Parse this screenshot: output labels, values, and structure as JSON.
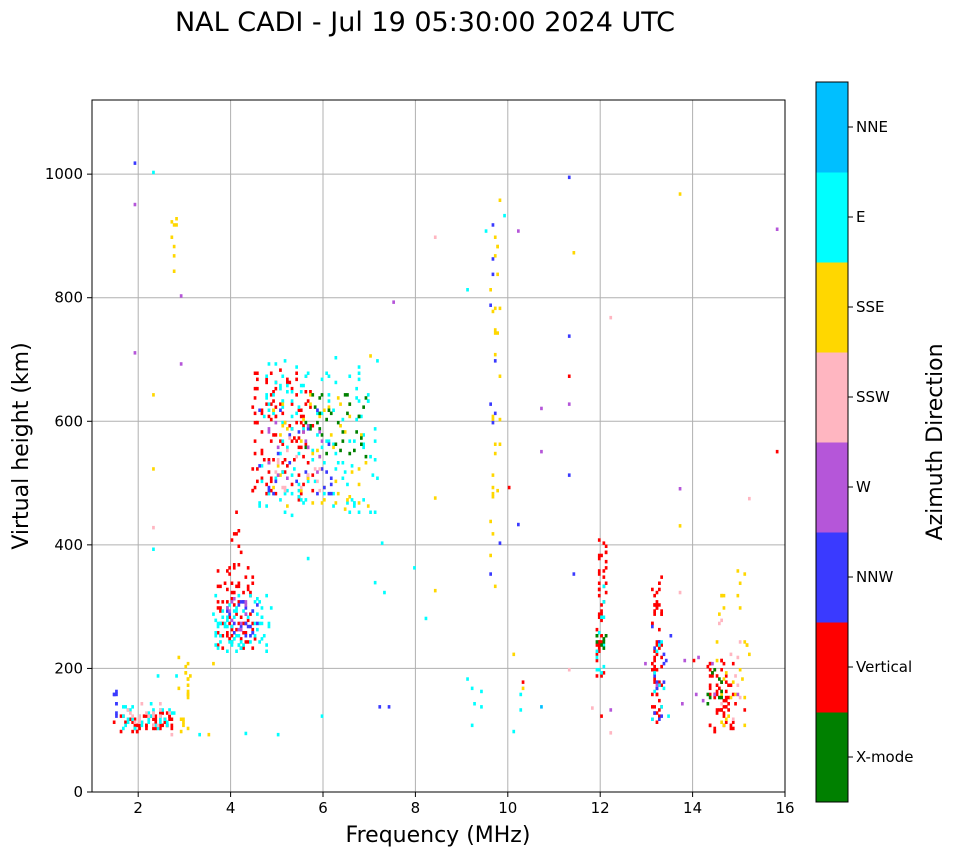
{
  "chart_data": {
    "type": "scatter",
    "title": "NAL CADI - Jul 19 05:30:00 2024 UTC",
    "xlabel": "Frequency (MHz)",
    "ylabel": "Virtual height (km)",
    "xlim": [
      1,
      16
    ],
    "ylim": [
      0,
      1120
    ],
    "xticks": [
      2,
      4,
      6,
      8,
      10,
      12,
      14,
      16
    ],
    "yticks": [
      0,
      200,
      400,
      600,
      800,
      1000
    ],
    "grid": true,
    "colorbar": {
      "label": "Azimuth Direction",
      "categories": [
        {
          "name": "X-mode",
          "color": "#008000"
        },
        {
          "name": "Vertical",
          "color": "#ff0000"
        },
        {
          "name": "NNW",
          "color": "#3a3aff"
        },
        {
          "name": "W",
          "color": "#b556d9"
        },
        {
          "name": "SSW",
          "color": "#ffb6c1"
        },
        {
          "name": "SSE",
          "color": "#ffd700"
        },
        {
          "name": "E",
          "color": "#00ffff"
        },
        {
          "name": "NNE",
          "color": "#00bfff"
        }
      ]
    },
    "clusters": [
      {
        "cat": "Vertical",
        "f": [
          1.45,
          2.7
        ],
        "h": [
          95,
          125
        ],
        "n": 50,
        "seed": 1
      },
      {
        "cat": "E",
        "f": [
          1.6,
          2.8
        ],
        "h": [
          100,
          140
        ],
        "n": 35,
        "seed": 2
      },
      {
        "cat": "NNW",
        "f": [
          1.45,
          1.55
        ],
        "h": [
          100,
          160
        ],
        "n": 8,
        "seed": 3
      },
      {
        "cat": "SSW",
        "f": [
          1.7,
          2.7
        ],
        "h": [
          105,
          140
        ],
        "n": 18,
        "seed": 4
      },
      {
        "cat": "SSE",
        "f": [
          2.8,
          3.1
        ],
        "h": [
          90,
          215
        ],
        "n": 20,
        "seed": 5
      },
      {
        "cat": "Vertical",
        "f": [
          3.7,
          4.5
        ],
        "h": [
          230,
          360
        ],
        "n": 70,
        "seed": 6
      },
      {
        "cat": "E",
        "f": [
          3.6,
          4.8
        ],
        "h": [
          225,
          320
        ],
        "n": 70,
        "seed": 7
      },
      {
        "cat": "NNW",
        "f": [
          3.9,
          4.6
        ],
        "h": [
          240,
          310
        ],
        "n": 20,
        "seed": 8
      },
      {
        "cat": "W",
        "f": [
          3.8,
          4.4
        ],
        "h": [
          250,
          310
        ],
        "n": 12,
        "seed": 9
      },
      {
        "cat": "Vertical",
        "f": [
          4.0,
          4.2
        ],
        "h": [
          360,
          450
        ],
        "n": 10,
        "seed": 10
      },
      {
        "cat": "Vertical",
        "f": [
          4.4,
          5.8
        ],
        "h": [
          470,
          680
        ],
        "n": 110,
        "seed": 11
      },
      {
        "cat": "E",
        "f": [
          4.6,
          7.2
        ],
        "h": [
          440,
          700
        ],
        "n": 130,
        "seed": 12
      },
      {
        "cat": "SSE",
        "f": [
          4.9,
          7.0
        ],
        "h": [
          445,
          640
        ],
        "n": 50,
        "seed": 13
      },
      {
        "cat": "X-mode",
        "f": [
          5.6,
          6.9
        ],
        "h": [
          540,
          640
        ],
        "n": 35,
        "seed": 14
      },
      {
        "cat": "NNW",
        "f": [
          4.6,
          6.2
        ],
        "h": [
          480,
          620
        ],
        "n": 25,
        "seed": 15
      },
      {
        "cat": "W",
        "f": [
          4.7,
          6.0
        ],
        "h": [
          500,
          600
        ],
        "n": 15,
        "seed": 16
      },
      {
        "cat": "SSW",
        "f": [
          4.8,
          6.0
        ],
        "h": [
          480,
          580
        ],
        "n": 15,
        "seed": 17
      },
      {
        "cat": "SSE",
        "f": [
          2.7,
          2.8
        ],
        "h": [
          820,
          930
        ],
        "n": 8,
        "seed": 18
      },
      {
        "cat": "SSE",
        "f": [
          9.6,
          9.8
        ],
        "h": [
          330,
          960
        ],
        "n": 30,
        "seed": 19
      },
      {
        "cat": "NNW",
        "f": [
          9.6,
          9.8
        ],
        "h": [
          330,
          940
        ],
        "n": 10,
        "seed": 20
      },
      {
        "cat": "Vertical",
        "f": [
          11.9,
          12.1
        ],
        "h": [
          185,
          405
        ],
        "n": 45,
        "seed": 21
      },
      {
        "cat": "E",
        "f": [
          11.9,
          12.1
        ],
        "h": [
          190,
          330
        ],
        "n": 12,
        "seed": 22
      },
      {
        "cat": "X-mode",
        "f": [
          11.9,
          12.1
        ],
        "h": [
          210,
          260
        ],
        "n": 8,
        "seed": 23
      },
      {
        "cat": "Vertical",
        "f": [
          13.1,
          13.3
        ],
        "h": [
          105,
          350
        ],
        "n": 60,
        "seed": 24
      },
      {
        "cat": "NNW",
        "f": [
          13.1,
          13.5
        ],
        "h": [
          110,
          265
        ],
        "n": 15,
        "seed": 25
      },
      {
        "cat": "E",
        "f": [
          13.1,
          13.6
        ],
        "h": [
          100,
          260
        ],
        "n": 10,
        "seed": 26
      },
      {
        "cat": "Vertical",
        "f": [
          14.3,
          14.9
        ],
        "h": [
          90,
          210
        ],
        "n": 60,
        "seed": 27
      },
      {
        "cat": "SSE",
        "f": [
          14.5,
          15.2
        ],
        "h": [
          100,
          360
        ],
        "n": 30,
        "seed": 28
      },
      {
        "cat": "X-mode",
        "f": [
          14.3,
          14.6
        ],
        "h": [
          130,
          200
        ],
        "n": 10,
        "seed": 29
      },
      {
        "cat": "SSW",
        "f": [
          14.5,
          15.0
        ],
        "h": [
          100,
          300
        ],
        "n": 10,
        "seed": 30
      },
      {
        "cat": "W",
        "f": [
          12.9,
          15.0
        ],
        "h": [
          125,
          230
        ],
        "n": 10,
        "seed": 31
      },
      {
        "cat": "E",
        "f": [
          2.3,
          8.2
        ],
        "h": [
          88,
          400
        ],
        "n": 10,
        "seed": 32
      },
      {
        "cat": "E",
        "f": [
          9.0,
          10.3
        ],
        "h": [
          90,
          180
        ],
        "n": 8,
        "seed": 33
      }
    ],
    "points": [
      {
        "f": 1.9,
        "h": 1015,
        "cat": "NNW"
      },
      {
        "f": 2.3,
        "h": 1000,
        "cat": "E"
      },
      {
        "f": 1.9,
        "h": 948,
        "cat": "W"
      },
      {
        "f": 1.9,
        "h": 708,
        "cat": "W"
      },
      {
        "f": 2.9,
        "h": 800,
        "cat": "W"
      },
      {
        "f": 2.9,
        "h": 690,
        "cat": "W"
      },
      {
        "f": 2.3,
        "h": 640,
        "cat": "SSE"
      },
      {
        "f": 2.3,
        "h": 520,
        "cat": "SSE"
      },
      {
        "f": 2.3,
        "h": 425,
        "cat": "SSW"
      },
      {
        "f": 2.3,
        "h": 390,
        "cat": "E"
      },
      {
        "f": 7.5,
        "h": 790,
        "cat": "W"
      },
      {
        "f": 8.4,
        "h": 895,
        "cat": "SSW"
      },
      {
        "f": 8.4,
        "h": 473,
        "cat": "SSE"
      },
      {
        "f": 8.4,
        "h": 323,
        "cat": "SSE"
      },
      {
        "f": 8.2,
        "h": 278,
        "cat": "E"
      },
      {
        "f": 7.2,
        "h": 135,
        "cat": "NNW"
      },
      {
        "f": 7.4,
        "h": 135,
        "cat": "NNW"
      },
      {
        "f": 7.1,
        "h": 336,
        "cat": "E"
      },
      {
        "f": 7.0,
        "h": 703,
        "cat": "SSE"
      },
      {
        "f": 9.1,
        "h": 810,
        "cat": "E"
      },
      {
        "f": 9.1,
        "h": 180,
        "cat": "E"
      },
      {
        "f": 9.5,
        "h": 905,
        "cat": "E"
      },
      {
        "f": 9.9,
        "h": 930,
        "cat": "E"
      },
      {
        "f": 10.0,
        "h": 490,
        "cat": "Vertical"
      },
      {
        "f": 10.2,
        "h": 905,
        "cat": "W"
      },
      {
        "f": 10.2,
        "h": 430,
        "cat": "NNW"
      },
      {
        "f": 10.1,
        "h": 220,
        "cat": "SSE"
      },
      {
        "f": 10.3,
        "h": 175,
        "cat": "Vertical"
      },
      {
        "f": 10.3,
        "h": 165,
        "cat": "SSE"
      },
      {
        "f": 10.7,
        "h": 618,
        "cat": "W"
      },
      {
        "f": 10.7,
        "h": 548,
        "cat": "W"
      },
      {
        "f": 10.7,
        "h": 135,
        "cat": "NNE"
      },
      {
        "f": 11.3,
        "h": 992,
        "cat": "NNW"
      },
      {
        "f": 11.4,
        "h": 870,
        "cat": "SSE"
      },
      {
        "f": 11.3,
        "h": 735,
        "cat": "NNW"
      },
      {
        "f": 11.3,
        "h": 670,
        "cat": "Vertical"
      },
      {
        "f": 11.3,
        "h": 625,
        "cat": "W"
      },
      {
        "f": 11.3,
        "h": 510,
        "cat": "NNW"
      },
      {
        "f": 11.4,
        "h": 350,
        "cat": "NNW"
      },
      {
        "f": 11.3,
        "h": 195,
        "cat": "SSW"
      },
      {
        "f": 12.2,
        "h": 765,
        "cat": "SSW"
      },
      {
        "f": 12.2,
        "h": 130,
        "cat": "W"
      },
      {
        "f": 12.2,
        "h": 93,
        "cat": "SSW"
      },
      {
        "f": 11.8,
        "h": 133,
        "cat": "SSW"
      },
      {
        "f": 12.0,
        "h": 120,
        "cat": "Vertical"
      },
      {
        "f": 13.7,
        "h": 965,
        "cat": "SSE"
      },
      {
        "f": 13.7,
        "h": 488,
        "cat": "W"
      },
      {
        "f": 13.7,
        "h": 428,
        "cat": "SSE"
      },
      {
        "f": 13.7,
        "h": 320,
        "cat": "SSW"
      },
      {
        "f": 14.0,
        "h": 210,
        "cat": "Vertical"
      },
      {
        "f": 15.2,
        "h": 472,
        "cat": "SSW"
      },
      {
        "f": 15.1,
        "h": 130,
        "cat": "Vertical"
      },
      {
        "f": 15.8,
        "h": 908,
        "cat": "W"
      },
      {
        "f": 15.8,
        "h": 548,
        "cat": "Vertical"
      },
      {
        "f": 3.6,
        "h": 205,
        "cat": "SSE"
      },
      {
        "f": 4.3,
        "h": 92,
        "cat": "E"
      },
      {
        "f": 3.5,
        "h": 90,
        "cat": "SSE"
      },
      {
        "f": 2.7,
        "h": 90,
        "cat": "SSW"
      }
    ]
  }
}
